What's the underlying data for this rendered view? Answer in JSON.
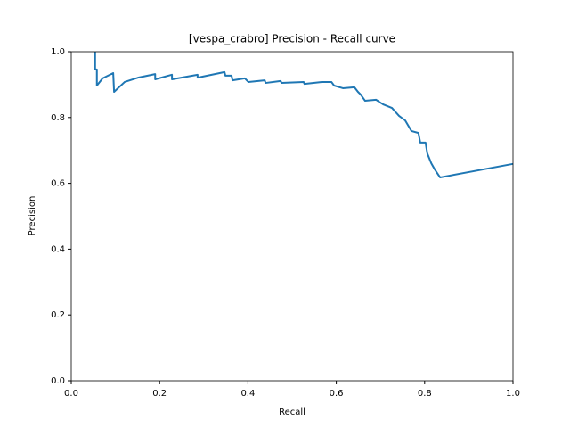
{
  "chart_data": {
    "type": "line",
    "title": "[vespa_crabro] Precision - Recall curve",
    "x_label": "Recall",
    "y_label": "Precision",
    "xlim": [
      0,
      1
    ],
    "ylim": [
      0,
      1
    ],
    "xticks": [
      {
        "value": 0,
        "label": "0.0"
      },
      0.2,
      0.4,
      0.6,
      0.8,
      {
        "value": 1,
        "label": "1.0"
      }
    ],
    "yticks": [
      {
        "value": 0,
        "label": "0.0"
      },
      0.2,
      0.4,
      0.6,
      0.8,
      {
        "value": 1,
        "label": "1.0"
      }
    ],
    "grid": false,
    "series": [
      {
        "color": "#1f77b4",
        "x": [
          0.054,
          0.054,
          0.058,
          0.058,
          0.071,
          0.095,
          0.097,
          0.121,
          0.151,
          0.19,
          0.19,
          0.228,
          0.228,
          0.286,
          0.286,
          0.347,
          0.349,
          0.363,
          0.365,
          0.393,
          0.401,
          0.438,
          0.44,
          0.474,
          0.476,
          0.526,
          0.528,
          0.567,
          0.589,
          0.595,
          0.615,
          0.641,
          0.649,
          0.655,
          0.665,
          0.69,
          0.706,
          0.726,
          0.742,
          0.756,
          0.77,
          0.786,
          0.79,
          0.802,
          0.806,
          0.815,
          0.823,
          0.831,
          0.835,
          1.0
        ],
        "values": [
          1.0,
          0.946,
          0.946,
          0.897,
          0.919,
          0.935,
          0.878,
          0.908,
          0.921,
          0.932,
          0.916,
          0.93,
          0.916,
          0.93,
          0.921,
          0.938,
          0.927,
          0.927,
          0.913,
          0.919,
          0.908,
          0.913,
          0.905,
          0.911,
          0.905,
          0.908,
          0.902,
          0.908,
          0.908,
          0.897,
          0.889,
          0.892,
          0.878,
          0.87,
          0.851,
          0.854,
          0.84,
          0.829,
          0.805,
          0.791,
          0.759,
          0.753,
          0.724,
          0.724,
          0.691,
          0.661,
          0.642,
          0.626,
          0.618,
          0.659
        ]
      }
    ]
  }
}
